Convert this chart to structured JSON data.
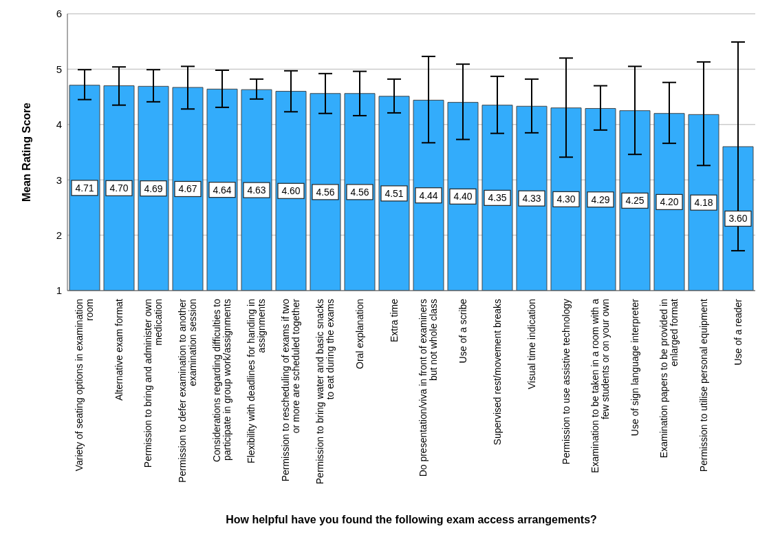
{
  "chart_data": {
    "type": "bar",
    "xlabel": "How helpful have you found the following exam access arrangements?",
    "ylabel": "Mean Rating Score",
    "categories": [
      "Variety of seating options in examination room",
      "Alternative exam format",
      "Permission to bring and administer own medication",
      "Permission to defer examination to another examination session",
      "Considerations regarding difficulties to participate in group work/assignments",
      "Flexibility with deadlines for handing in assignments",
      "Permission to rescheduling of exams if two or more are scheduled together",
      "Permission to bring water and basic snacks to eat during the exams",
      "Oral explanation",
      "Extra time",
      "Do presentation/viva in front of examiners but not whole class",
      "Use of a scribe",
      "Supervised rest/movement breaks",
      "Visual time indication",
      "Permission to use assistive technology",
      "Examination to be taken in a room with a few students or on your own",
      "Use of sign language interpreter",
      "Examination papers to be provided in enlarged format",
      "Permission to utilise personal equipment",
      "Use of a reader"
    ],
    "values": [
      4.71,
      4.7,
      4.69,
      4.67,
      4.64,
      4.63,
      4.6,
      4.56,
      4.56,
      4.51,
      4.44,
      4.4,
      4.35,
      4.33,
      4.3,
      4.29,
      4.25,
      4.2,
      4.18,
      3.6
    ],
    "errors": [
      [
        4.45,
        4.99
      ],
      [
        4.35,
        5.04
      ],
      [
        4.41,
        4.99
      ],
      [
        4.28,
        5.05
      ],
      [
        4.31,
        4.98
      ],
      [
        4.46,
        4.82
      ],
      [
        4.23,
        4.97
      ],
      [
        4.2,
        4.92
      ],
      [
        4.16,
        4.96
      ],
      [
        4.21,
        4.82
      ],
      [
        3.67,
        5.23
      ],
      [
        3.73,
        5.09
      ],
      [
        3.84,
        4.87
      ],
      [
        3.85,
        4.82
      ],
      [
        3.41,
        5.2
      ],
      [
        3.9,
        4.7
      ],
      [
        3.46,
        5.05
      ],
      [
        3.66,
        4.76
      ],
      [
        3.26,
        5.13
      ],
      [
        1.72,
        5.49
      ]
    ],
    "value_labels": [
      "4.71",
      "4.70",
      "4.69",
      "4.67",
      "4.64",
      "4.63",
      "4.60",
      "4.56",
      "4.56",
      "4.51",
      "4.44",
      "4.40",
      "4.35",
      "4.33",
      "4.30",
      "4.29",
      "4.25",
      "4.20",
      "4.18",
      "3.60"
    ],
    "color": "#33acfb",
    "ylim": [
      1,
      6
    ],
    "yticks": [
      1,
      2,
      3,
      4,
      5,
      6
    ],
    "grid": "y"
  }
}
